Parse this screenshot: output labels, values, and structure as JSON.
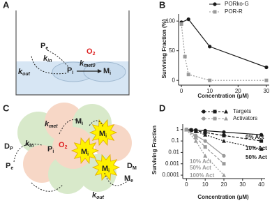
{
  "panel_labels": [
    "A",
    "B",
    "C",
    "D"
  ],
  "diagrams": [
    {
      "items": [
        {
          "main": "P",
          "sub": "e"
        },
        {
          "main": "k",
          "sub": "in"
        },
        {
          "main": "P",
          "sub": "i"
        },
        {
          "main": "k",
          "sub": "out"
        },
        {
          "main": "k",
          "sub": "met0"
        },
        {
          "main": "O",
          "sub": "2"
        },
        {
          "main": "M",
          "sub": "i"
        }
      ]
    },
    {
      "items": [
        {
          "main": "P",
          "sub": "e"
        },
        {
          "main": "D",
          "sub": "P"
        },
        {
          "main": "k",
          "sub": "in"
        },
        {
          "main": "P",
          "sub": "i"
        },
        {
          "main": "O",
          "sub": "2"
        },
        {
          "main": "k",
          "sub": "met"
        },
        {
          "main": "M",
          "sub": "i"
        },
        {
          "main": "M",
          "sub": "i"
        },
        {
          "main": "M",
          "sub": "i"
        },
        {
          "main": "M",
          "sub": "i"
        },
        {
          "main": "k",
          "sub": "out"
        },
        {
          "main": "M",
          "sub": "e"
        },
        {
          "main": "D",
          "sub": "M"
        }
      ]
    }
  ],
  "chart_data": [
    {
      "type": "line",
      "x_label": "Concentration (μM)",
      "y_label": "Surviving Fraction (%)",
      "xlim": [
        -1,
        31
      ],
      "ylim": [
        -8,
        112
      ],
      "xticks": [
        0,
        10,
        20,
        30
      ],
      "yticks": [
        0,
        50,
        100
      ],
      "log_y": false,
      "series": [
        {
          "name": "PORko-G",
          "color": "#1a1a1a",
          "marker": "circle",
          "dash": "none",
          "x": [
            0,
            2.5,
            10,
            30
          ],
          "values": [
            98,
            103,
            57,
            22
          ]
        },
        {
          "name": "POR-R",
          "color": "#9a9a9a",
          "marker": "square",
          "dash": "2,2",
          "x": [
            0,
            1.25,
            2.5,
            10,
            30
          ],
          "values": [
            95,
            40,
            10,
            0,
            0
          ]
        }
      ]
    },
    {
      "type": "line",
      "x_label": "Concentration (μM)",
      "y_label": "Surviving Fraction",
      "xlim": [
        -2,
        42
      ],
      "ylim": [
        5e-05,
        3
      ],
      "log_y": true,
      "xticks": [
        0,
        10,
        20,
        30,
        40
      ],
      "yticks": [
        1,
        0.1,
        0.01,
        0.001,
        0.0001
      ],
      "legend": [
        {
          "name": "Targets",
          "color": "#1a1a1a"
        },
        {
          "name": "Activators",
          "color": "#9a9a9a"
        }
      ],
      "series": [
        {
          "label": "0% Act",
          "color": "#1a1a1a",
          "marker": "circle",
          "dash": "none",
          "x": [
            0,
            2.5,
            5,
            10,
            20,
            40
          ],
          "values": [
            1,
            0.95,
            0.9,
            0.8,
            0.6,
            0.35
          ]
        },
        {
          "label": "10% Act",
          "color": "#1a1a1a",
          "marker": "square",
          "dash": "4,2",
          "x": [
            0,
            2.5,
            5,
            10,
            20,
            40
          ],
          "values": [
            1,
            0.9,
            0.8,
            0.55,
            0.3,
            0.1
          ]
        },
        {
          "label": "50% Act",
          "color": "#1a1a1a",
          "marker": "triangle",
          "dash": "2,2",
          "x": [
            0,
            5,
            10,
            20,
            40
          ],
          "values": [
            1,
            0.7,
            0.35,
            0.1,
            0.02
          ]
        },
        {
          "label": "10% Act",
          "color": "#9a9a9a",
          "marker": "circle",
          "dash": "none",
          "x": [
            0,
            5,
            10,
            20
          ],
          "values": [
            1,
            0.3,
            0.1,
            0.005
          ]
        },
        {
          "label": "50% Act",
          "color": "#9a9a9a",
          "marker": "square",
          "dash": "4,2",
          "x": [
            0,
            5,
            10,
            20
          ],
          "values": [
            1,
            0.2,
            0.03,
            0.001
          ]
        },
        {
          "label": "100% Act",
          "color": "#9a9a9a",
          "marker": "triangle",
          "dash": "2,2",
          "x": [
            0,
            5,
            10,
            20
          ],
          "values": [
            1,
            0.1,
            0.005,
            0.0001
          ]
        }
      ]
    }
  ]
}
